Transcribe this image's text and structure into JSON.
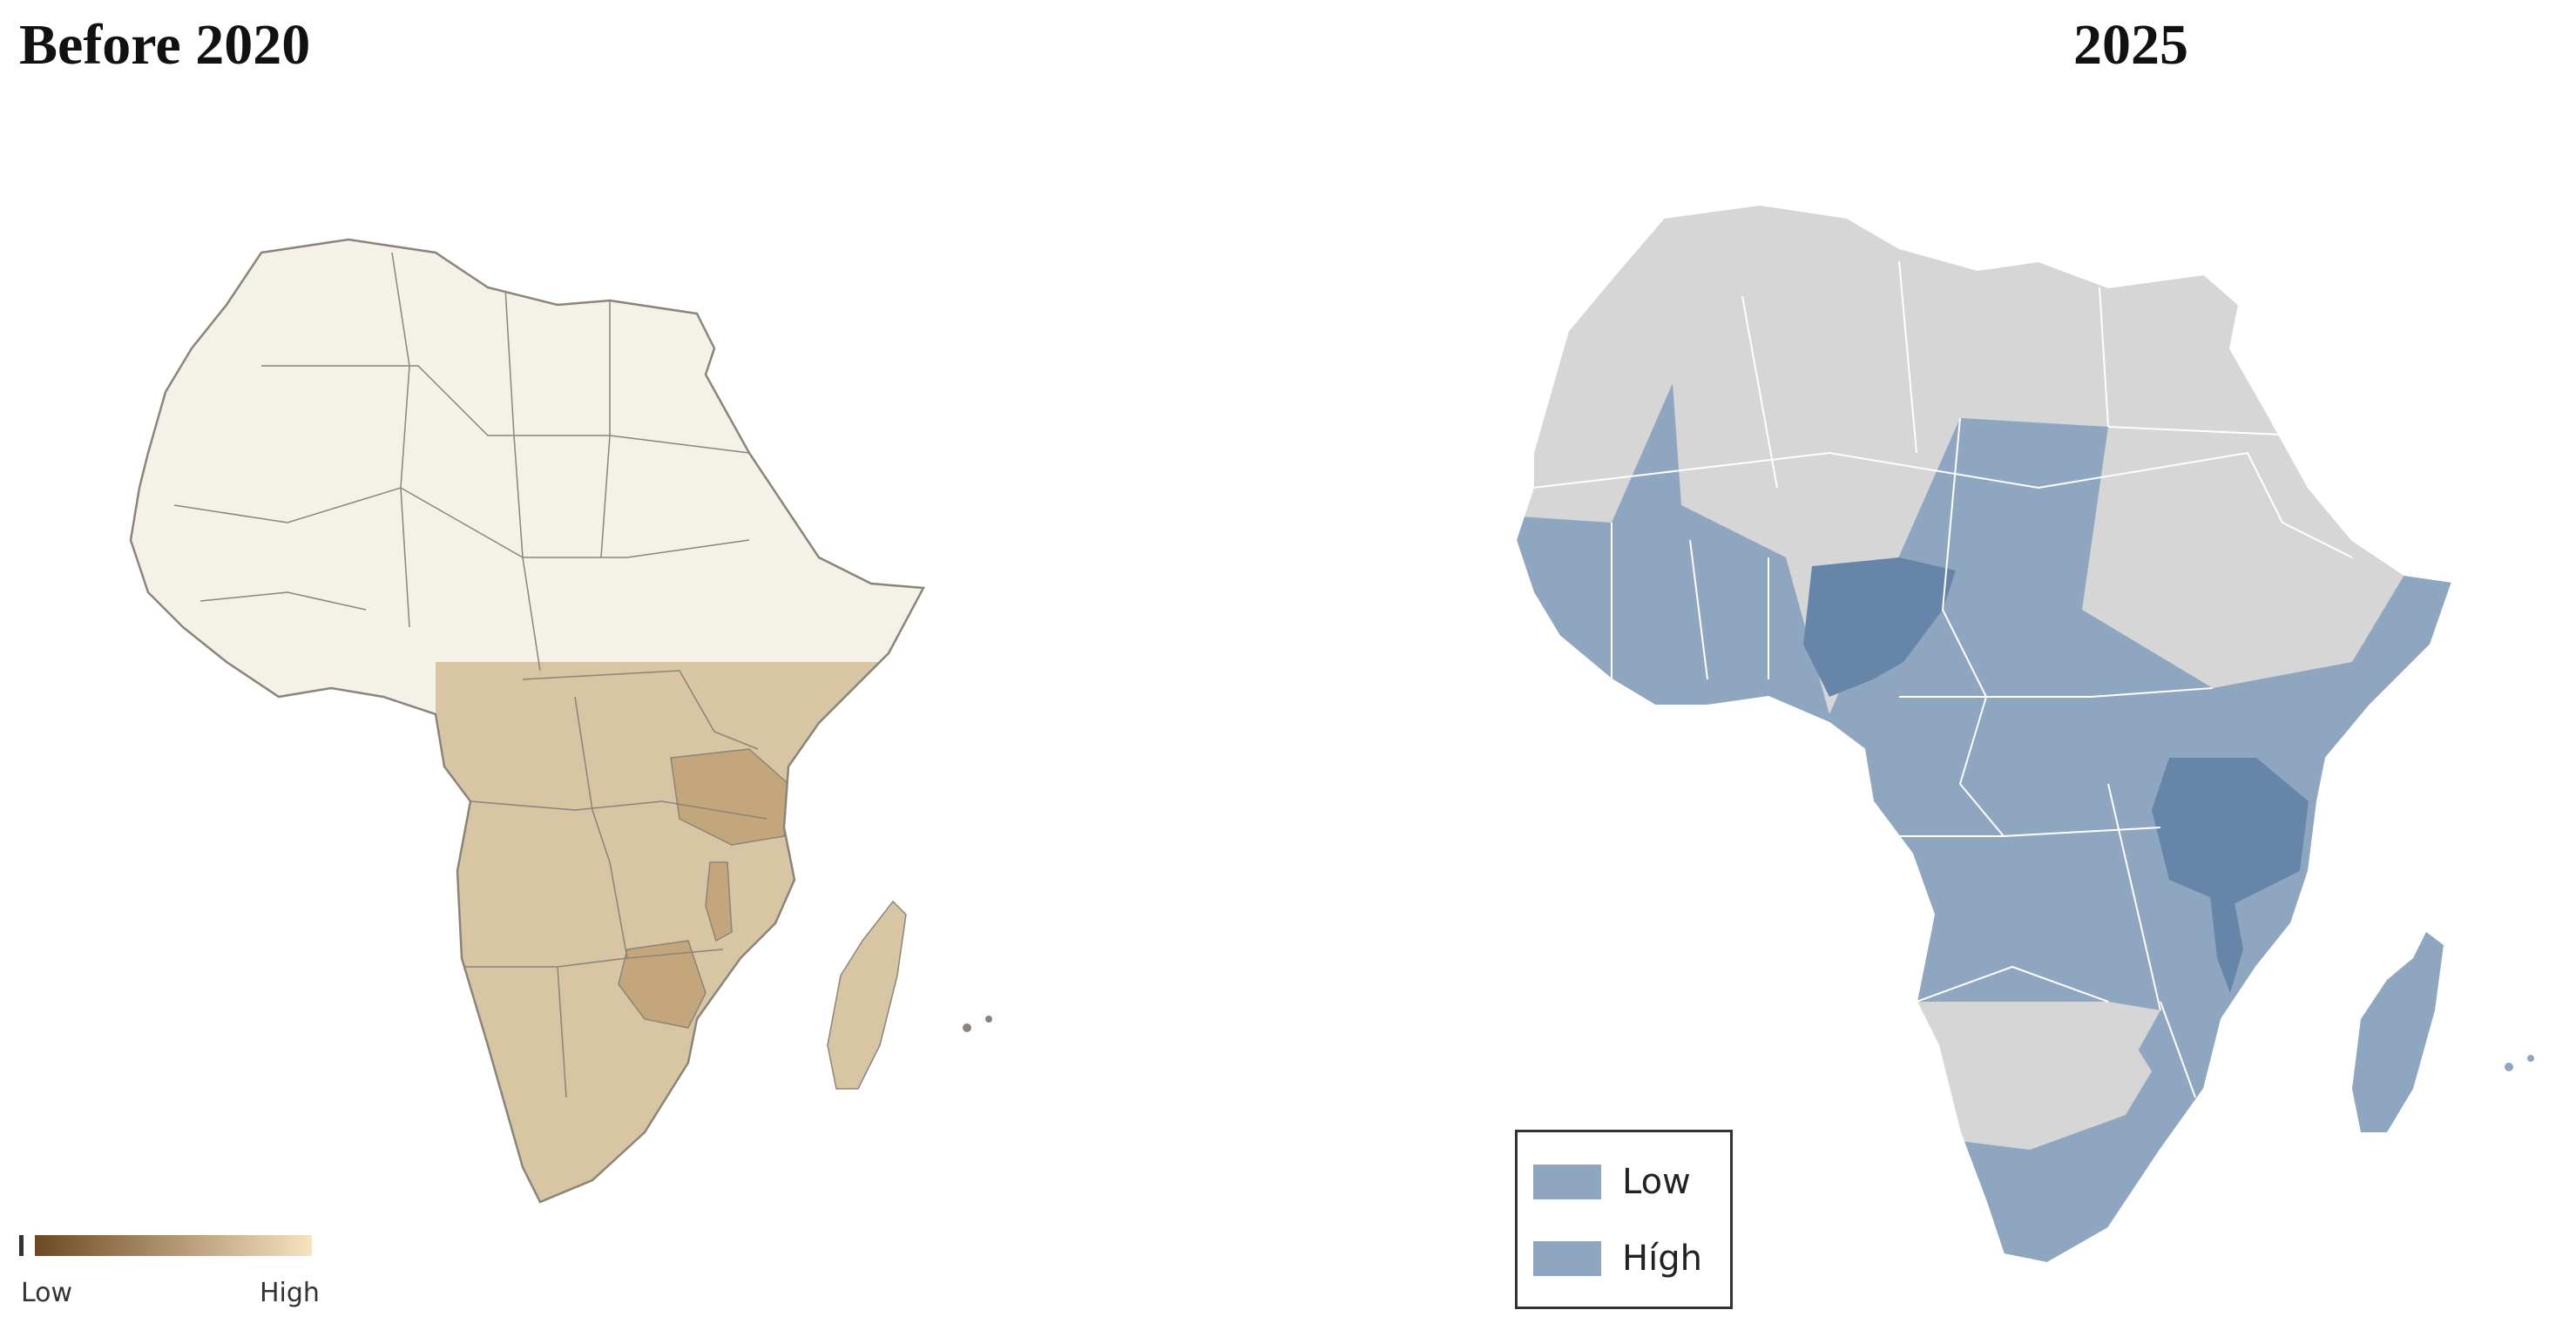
{
  "left_map": {
    "title": "Before 2020",
    "base_fill": "#f4f1e8",
    "shaded_fill": "#d8c5a4",
    "dark_fill": "#c4a67c",
    "stroke": "#8a8578",
    "scale": {
      "low_label": "Low",
      "high_label": "High",
      "low_color": "#6b4a22",
      "high_color": "#f7e3bf"
    }
  },
  "right_map": {
    "title": "2025",
    "base_fill": "#d6d6d6",
    "low_fill": "#8fa6c0",
    "high_fill": "#6685a8",
    "stroke": "#ffffff",
    "legend": {
      "items": [
        {
          "label": "Low",
          "color": "#8fa6c0"
        },
        {
          "label": "Hígh",
          "color": "#8fa6c0"
        }
      ]
    }
  }
}
